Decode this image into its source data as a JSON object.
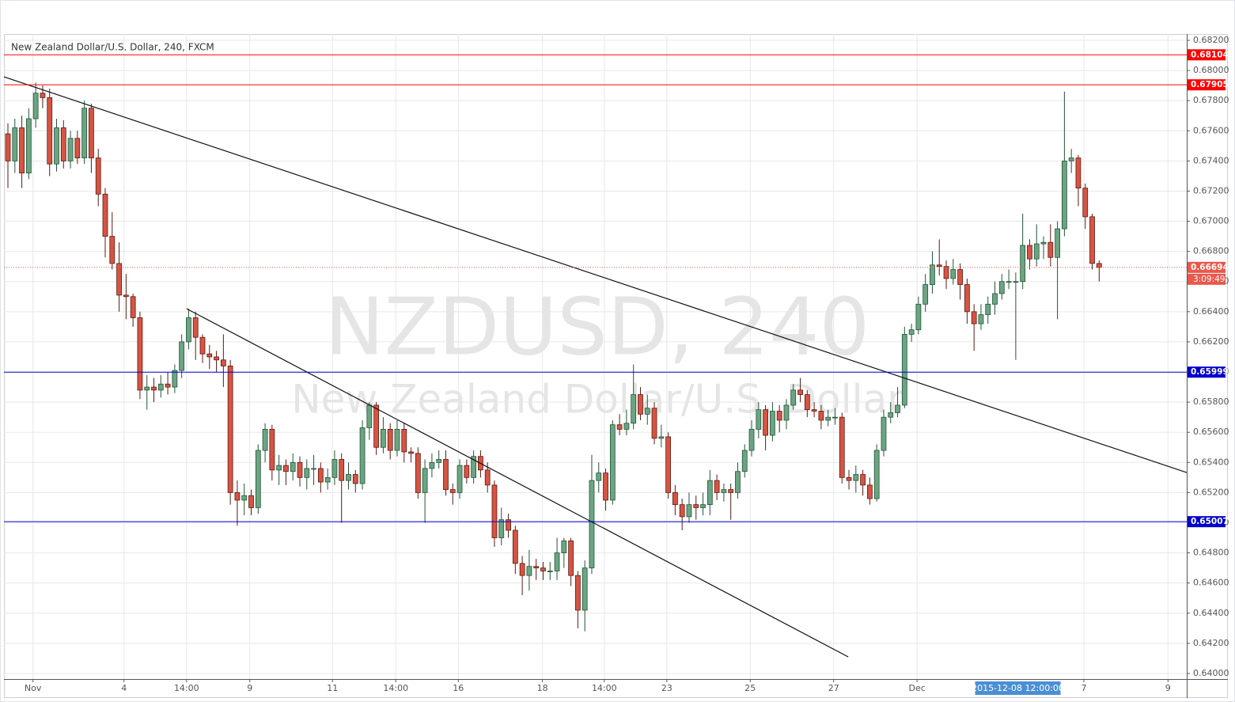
{
  "chart_data": {
    "type": "candlestick",
    "title": "New Zealand Dollar/U.S. Dollar, 240, FXCM",
    "watermark": {
      "symbol": "NZDUSD, 240",
      "description": "New Zealand Dollar/U.S. Dollar"
    },
    "up_color": "#6ba583",
    "up_border": "#225437",
    "down_color": "#d75442",
    "down_border": "#5b1a13",
    "grid": true,
    "xlim": [
      -0.57,
      169.6
    ],
    "xticks": [
      {
        "value": 3.6,
        "label": "Nov"
      },
      {
        "value": 16.7,
        "label": "4"
      },
      {
        "value": 25.7,
        "label": "14:00"
      },
      {
        "value": 34.8,
        "label": "9"
      },
      {
        "value": 46.7,
        "label": "11"
      },
      {
        "value": 55.8,
        "label": "14:00"
      },
      {
        "value": 64.8,
        "label": "16"
      },
      {
        "value": 76.9,
        "label": "18"
      },
      {
        "value": 85.8,
        "label": "14:00"
      },
      {
        "value": 94.8,
        "label": "23"
      },
      {
        "value": 106.8,
        "label": "25"
      },
      {
        "value": 118.8,
        "label": "27"
      },
      {
        "value": 130.8,
        "label": "Dec"
      },
      {
        "value": 154.8,
        "label": "7"
      },
      {
        "value": 166.9,
        "label": "9"
      }
    ],
    "crosshair": {
      "x": 145.3,
      "label": "2015-12-08 12:00:00",
      "color": "#4a8fd4"
    },
    "ylim": [
      0.63963,
      0.68242
    ],
    "yticks": [
      {
        "value": 0.64,
        "label": "0.64000"
      },
      {
        "value": 0.642,
        "label": "0.64200"
      },
      {
        "value": 0.644,
        "label": "0.64400"
      },
      {
        "value": 0.646,
        "label": "0.64600"
      },
      {
        "value": 0.648,
        "label": "0.64800"
      },
      {
        "value": 0.65,
        "label": "0.65000"
      },
      {
        "value": 0.652,
        "label": "0.65200"
      },
      {
        "value": 0.654,
        "label": "0.65400"
      },
      {
        "value": 0.656,
        "label": "0.65600"
      },
      {
        "value": 0.658,
        "label": "0.65800"
      },
      {
        "value": 0.66,
        "label": "0.66000"
      },
      {
        "value": 0.662,
        "label": "0.66200"
      },
      {
        "value": 0.664,
        "label": "0.66400"
      },
      {
        "value": 0.666,
        "label": "0.66600"
      },
      {
        "value": 0.668,
        "label": "0.66800"
      },
      {
        "value": 0.67,
        "label": "0.67000"
      },
      {
        "value": 0.672,
        "label": "0.67200"
      },
      {
        "value": 0.674,
        "label": "0.67400"
      },
      {
        "value": 0.676,
        "label": "0.67600"
      },
      {
        "value": 0.678,
        "label": "0.67800"
      },
      {
        "value": 0.68,
        "label": "0.68000"
      },
      {
        "value": 0.682,
        "label": "0.68200"
      }
    ],
    "levels": [
      {
        "value": 0.68104,
        "color": "#ff0000"
      },
      {
        "value": 0.67905,
        "color": "#ff0000"
      },
      {
        "value": 0.65999,
        "color": "#0000cc"
      },
      {
        "value": 0.65007,
        "color": "#0000cc"
      }
    ],
    "current_price": {
      "value": 0.66694,
      "countdown": "3:09:49",
      "color": "#e8584b"
    },
    "trendlines": [
      {
        "x": [
          -0.57,
          169.6
        ],
        "y": [
          0.67958,
          0.65333
        ]
      },
      {
        "x": [
          25.7,
          120.9
        ],
        "y": [
          0.6642,
          0.6411
        ]
      }
    ],
    "open": [
      0.6758,
      0.674,
      0.6762,
      0.6732,
      0.6768,
      0.6785,
      0.6782,
      0.6738,
      0.6762,
      0.674,
      0.6755,
      0.6742,
      0.6775,
      0.6742,
      0.6718,
      0.669,
      0.6672,
      0.6651,
      0.665,
      0.6636,
      0.6588,
      0.659,
      0.6588,
      0.6592,
      0.659,
      0.6601,
      0.662,
      0.6636,
      0.6623,
      0.6612,
      0.661,
      0.6608,
      0.6604,
      0.652,
      0.6515,
      0.6518,
      0.651,
      0.6548,
      0.6562,
      0.6535,
      0.6538,
      0.6534,
      0.654,
      0.653,
      0.6536,
      0.6536,
      0.6527,
      0.653,
      0.6542,
      0.6528,
      0.6532,
      0.6526,
      0.6563,
      0.6578,
      0.655,
      0.6562,
      0.6548,
      0.6562,
      0.6547,
      0.6546,
      0.652,
      0.6536,
      0.654,
      0.6542,
      0.6522,
      0.652,
      0.6538,
      0.653,
      0.6544,
      0.6535,
      0.6525,
      0.649,
      0.6502,
      0.6495,
      0.6473,
      0.6465,
      0.6471,
      0.647,
      0.6468,
      0.6468,
      0.648,
      0.6488,
      0.6465,
      0.6442,
      0.647,
      0.6528,
      0.6533,
      0.6515,
      0.6565,
      0.6562,
      0.6566,
      0.6585,
      0.6572,
      0.6576,
      0.6556,
      0.6557,
      0.652,
      0.6512,
      0.6504,
      0.6512,
      0.651,
      0.6512,
      0.6528,
      0.652,
      0.6522,
      0.652,
      0.6534,
      0.6548,
      0.6562,
      0.6575,
      0.6558,
      0.6574,
      0.6568,
      0.6578,
      0.6588,
      0.6585,
      0.6575,
      0.6574,
      0.6568,
      0.657,
      0.657,
      0.653,
      0.6528,
      0.6532,
      0.6525,
      0.6516,
      0.6548,
      0.657,
      0.6573,
      0.6578,
      0.6625,
      0.6628,
      0.6645,
      0.6658,
      0.6671,
      0.667,
      0.6662,
      0.6668,
      0.6658,
      0.664,
      0.6632,
      0.6638,
      0.6645,
      0.6652,
      0.666,
      0.666,
      0.666,
      0.6684,
      0.6675,
      0.6685,
      0.6686,
      0.6676,
      0.6695,
      0.674,
      0.6742,
      0.6722,
      0.6703,
      0.6672
    ],
    "high": [
      0.6765,
      0.6768,
      0.677,
      0.6775,
      0.6792,
      0.679,
      0.6788,
      0.6768,
      0.6767,
      0.676,
      0.676,
      0.678,
      0.6778,
      0.6748,
      0.6722,
      0.6706,
      0.6686,
      0.6665,
      0.6652,
      0.664,
      0.6598,
      0.6596,
      0.6598,
      0.66,
      0.6605,
      0.6625,
      0.6642,
      0.664,
      0.6625,
      0.6618,
      0.6614,
      0.6625,
      0.6608,
      0.6528,
      0.6526,
      0.6522,
      0.6552,
      0.6566,
      0.6565,
      0.6545,
      0.6542,
      0.6546,
      0.6544,
      0.6542,
      0.6545,
      0.654,
      0.6536,
      0.6548,
      0.6546,
      0.654,
      0.6535,
      0.6568,
      0.658,
      0.658,
      0.657,
      0.6566,
      0.6568,
      0.6566,
      0.655,
      0.655,
      0.6542,
      0.6546,
      0.6548,
      0.6548,
      0.6526,
      0.6542,
      0.6542,
      0.6548,
      0.6548,
      0.654,
      0.6528,
      0.651,
      0.6506,
      0.6498,
      0.6478,
      0.6482,
      0.6476,
      0.6474,
      0.6474,
      0.649,
      0.649,
      0.649,
      0.6468,
      0.6475,
      0.6545,
      0.654,
      0.6536,
      0.6568,
      0.6572,
      0.6575,
      0.6605,
      0.659,
      0.6585,
      0.658,
      0.6565,
      0.656,
      0.6525,
      0.6516,
      0.652,
      0.6518,
      0.652,
      0.6535,
      0.6532,
      0.6526,
      0.6526,
      0.654,
      0.6552,
      0.6568,
      0.658,
      0.6578,
      0.658,
      0.6578,
      0.6582,
      0.6592,
      0.6596,
      0.6588,
      0.658,
      0.6578,
      0.6575,
      0.6576,
      0.6573,
      0.6535,
      0.6538,
      0.6535,
      0.653,
      0.6552,
      0.6575,
      0.658,
      0.659,
      0.663,
      0.6632,
      0.665,
      0.6665,
      0.668,
      0.6688,
      0.6674,
      0.6675,
      0.6672,
      0.6662,
      0.6645,
      0.6645,
      0.665,
      0.666,
      0.6665,
      0.6668,
      0.6666,
      0.6705,
      0.6688,
      0.6698,
      0.669,
      0.6698,
      0.67,
      0.6786,
      0.6748,
      0.6744,
      0.6725,
      0.6705,
      0.6674
    ],
    "low": [
      0.6722,
      0.6732,
      0.6722,
      0.6728,
      0.6762,
      0.6775,
      0.673,
      0.6733,
      0.6735,
      0.6735,
      0.6738,
      0.6738,
      0.6732,
      0.671,
      0.6676,
      0.6668,
      0.664,
      0.6635,
      0.663,
      0.6582,
      0.6575,
      0.658,
      0.6583,
      0.6585,
      0.6586,
      0.6596,
      0.6615,
      0.6608,
      0.6606,
      0.6602,
      0.66,
      0.659,
      0.6512,
      0.6498,
      0.6505,
      0.6505,
      0.6506,
      0.654,
      0.6528,
      0.6525,
      0.6525,
      0.6528,
      0.6524,
      0.6522,
      0.6525,
      0.652,
      0.6522,
      0.6525,
      0.65,
      0.6522,
      0.652,
      0.6522,
      0.6555,
      0.6545,
      0.6546,
      0.6542,
      0.6544,
      0.654,
      0.654,
      0.6516,
      0.65,
      0.653,
      0.6536,
      0.6518,
      0.6512,
      0.6516,
      0.6526,
      0.6526,
      0.653,
      0.652,
      0.6484,
      0.6485,
      0.649,
      0.6466,
      0.6452,
      0.6455,
      0.6462,
      0.6462,
      0.6462,
      0.6462,
      0.647,
      0.6458,
      0.643,
      0.6428,
      0.6466,
      0.652,
      0.6508,
      0.6512,
      0.6558,
      0.6558,
      0.6562,
      0.6568,
      0.6565,
      0.6552,
      0.655,
      0.6516,
      0.6505,
      0.6495,
      0.65,
      0.6502,
      0.6505,
      0.6505,
      0.6515,
      0.6514,
      0.6502,
      0.6516,
      0.653,
      0.6544,
      0.6556,
      0.6548,
      0.6554,
      0.656,
      0.6562,
      0.6575,
      0.658,
      0.657,
      0.657,
      0.6562,
      0.6564,
      0.6565,
      0.6526,
      0.6522,
      0.652,
      0.6518,
      0.6512,
      0.6514,
      0.6544,
      0.6566,
      0.657,
      0.6576,
      0.662,
      0.6625,
      0.664,
      0.6652,
      0.6664,
      0.6655,
      0.6658,
      0.6648,
      0.6632,
      0.6614,
      0.6628,
      0.6632,
      0.6638,
      0.6648,
      0.6655,
      0.6608,
      0.6655,
      0.6668,
      0.667,
      0.6675,
      0.667,
      0.6635,
      0.669,
      0.6732,
      0.671,
      0.6695,
      0.6668,
      0.666
    ],
    "close": [
      0.674,
      0.6762,
      0.6732,
      0.6768,
      0.6785,
      0.6782,
      0.6738,
      0.6762,
      0.674,
      0.6755,
      0.6742,
      0.6775,
      0.6742,
      0.6718,
      0.669,
      0.6672,
      0.6651,
      0.665,
      0.6636,
      0.6588,
      0.659,
      0.6588,
      0.6592,
      0.659,
      0.6601,
      0.662,
      0.6636,
      0.6623,
      0.6612,
      0.661,
      0.6608,
      0.6604,
      0.652,
      0.6515,
      0.6518,
      0.651,
      0.6548,
      0.6562,
      0.6535,
      0.6538,
      0.6534,
      0.654,
      0.653,
      0.6536,
      0.6536,
      0.6527,
      0.653,
      0.6542,
      0.6528,
      0.6532,
      0.6526,
      0.6563,
      0.6578,
      0.655,
      0.6562,
      0.6548,
      0.6562,
      0.6547,
      0.6546,
      0.652,
      0.6536,
      0.654,
      0.6542,
      0.6522,
      0.652,
      0.6538,
      0.653,
      0.6544,
      0.6535,
      0.6525,
      0.649,
      0.6502,
      0.6495,
      0.6473,
      0.6465,
      0.6471,
      0.647,
      0.6468,
      0.6468,
      0.648,
      0.6488,
      0.6465,
      0.6442,
      0.647,
      0.6528,
      0.6533,
      0.6515,
      0.6565,
      0.6562,
      0.6566,
      0.6585,
      0.6572,
      0.6576,
      0.6556,
      0.6557,
      0.652,
      0.6512,
      0.6504,
      0.6512,
      0.651,
      0.6512,
      0.6528,
      0.652,
      0.6522,
      0.652,
      0.6534,
      0.6548,
      0.6562,
      0.6575,
      0.6558,
      0.6574,
      0.6568,
      0.6578,
      0.6588,
      0.6585,
      0.6575,
      0.6574,
      0.6568,
      0.657,
      0.657,
      0.653,
      0.6528,
      0.6532,
      0.6525,
      0.6516,
      0.6548,
      0.657,
      0.6573,
      0.6578,
      0.6625,
      0.6628,
      0.6645,
      0.6658,
      0.6671,
      0.667,
      0.6662,
      0.6668,
      0.6658,
      0.664,
      0.6632,
      0.6638,
      0.6645,
      0.6652,
      0.666,
      0.666,
      0.666,
      0.6684,
      0.6675,
      0.6685,
      0.6686,
      0.6676,
      0.6695,
      0.674,
      0.6742,
      0.6722,
      0.6703,
      0.6672,
      0.66694
    ]
  }
}
